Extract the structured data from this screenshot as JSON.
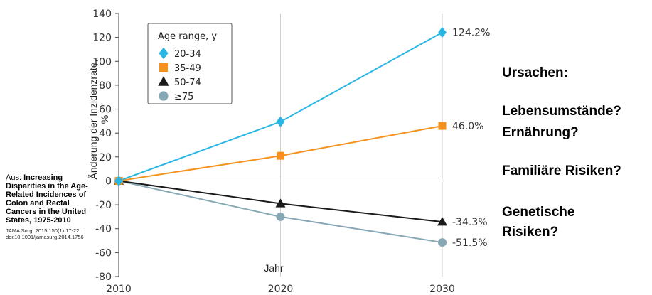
{
  "chart_data": {
    "type": "line",
    "x": [
      2010,
      2020,
      2030
    ],
    "xlabel": "Jahr",
    "ylabel": "Änderung der Inzidenzrate, %",
    "xlim": [
      2010,
      2030
    ],
    "ylim": [
      -80,
      140
    ],
    "yticks": [
      -80,
      -60,
      -40,
      -20,
      0,
      20,
      40,
      60,
      80,
      100,
      120,
      140
    ],
    "xticks": [
      2010,
      2020,
      2030
    ],
    "grid": "vertical",
    "legend": {
      "title": "Age range, y",
      "position": "top-left"
    },
    "series": [
      {
        "name": "20-34",
        "values": [
          0,
          49.5,
          124.2
        ],
        "color": "#29b6e5",
        "marker": "diamond",
        "end_label": "124.2%"
      },
      {
        "name": "35-49",
        "values": [
          0,
          21,
          46.0
        ],
        "color": "#f5921e",
        "marker": "square",
        "end_label": "46.0%"
      },
      {
        "name": "50-74",
        "values": [
          0,
          -19,
          -34.3
        ],
        "color": "#1a1a1a",
        "marker": "triangle",
        "end_label": "-34.3%"
      },
      {
        "name": "≥75",
        "values": [
          0,
          -30,
          -51.5
        ],
        "color": "#86a8b5",
        "marker": "circle",
        "end_label": "-51.5%"
      }
    ]
  },
  "source": {
    "prefix": "Aus: ",
    "title": "Increasing Disparities in the Age-Related Incidences of Colon and Rectal Cancers in the United States, 1975-2010",
    "citation_line1": "JAMA Surg. 2015;150(1):17-22.",
    "citation_line2": "doi:10.1001/jamasurg.2014.1756"
  },
  "notes": {
    "causes": "Ursachen:",
    "lifestyle": "Lebensumstände?",
    "nutrition": "Ernährung?",
    "familial": "Familiäre Risiken?",
    "genetic_line1": "Genetische",
    "genetic_line2": "Risiken?"
  }
}
